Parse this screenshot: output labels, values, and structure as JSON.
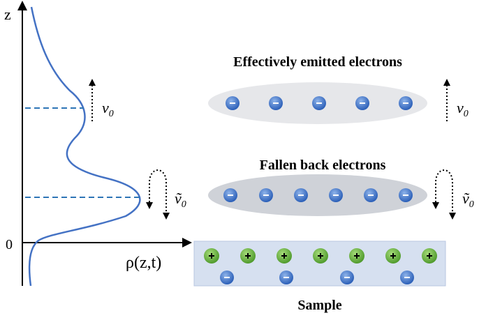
{
  "axes": {
    "vertical_label": "z",
    "origin_label": "0",
    "horizontal_label": "ρ(z,t)"
  },
  "velocities": {
    "emitted": {
      "symbol": "v",
      "subscript": "0"
    },
    "fallen": {
      "symbol": "ṽ",
      "subscript": "0"
    }
  },
  "groups": {
    "emitted": {
      "title": "Effectively emitted electrons"
    },
    "fallen": {
      "title": "Fallen back electrons"
    }
  },
  "sample": {
    "label": "Sample"
  }
}
